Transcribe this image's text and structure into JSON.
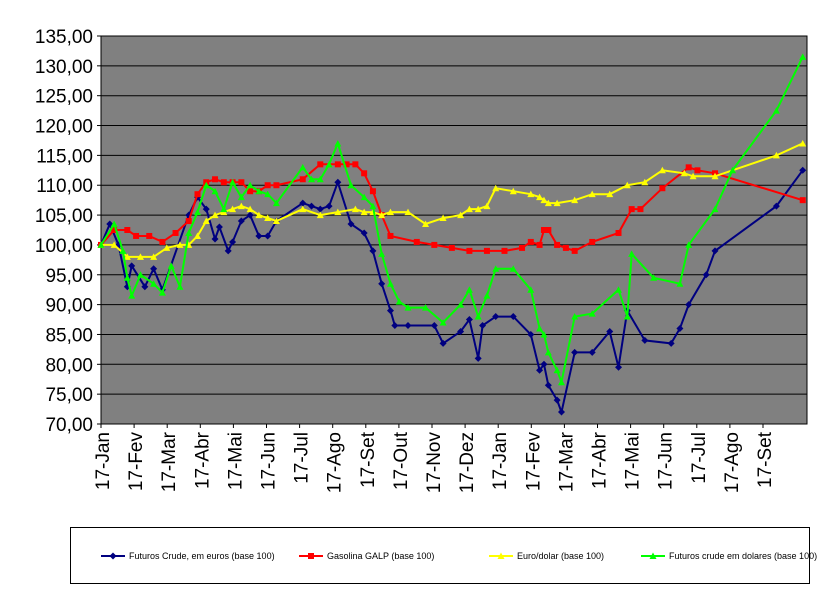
{
  "chart_data": {
    "type": "line",
    "title": "",
    "xlabel": "",
    "ylabel": "",
    "ylim": [
      70,
      135
    ],
    "y_ticks": [
      "70,00",
      "75,00",
      "80,00",
      "85,00",
      "90,00",
      "95,00",
      "100,00",
      "105,00",
      "110,00",
      "115,00",
      "120,00",
      "125,00",
      "130,00",
      "135,00"
    ],
    "x_ticks": [
      "17-Jan",
      "17-Fev",
      "17-Mar",
      "17-Abr",
      "17-Mai",
      "17-Jun",
      "17-Jul",
      "17-Ago",
      "17-Set",
      "17-Out",
      "17-Nov",
      "17-Dez",
      "17-Jan",
      "17-Fev",
      "17-Mar",
      "17-Abr",
      "17-Mai",
      "17-Jun",
      "17-Jul",
      "17-Ago",
      "17-Set"
    ],
    "grid": true,
    "background": "#808080",
    "legend_position": "bottom",
    "series": [
      {
        "name": "Futuros Crude, em euros (base 100)",
        "color": "#000080",
        "marker": "diamond",
        "points": [
          [
            0,
            100
          ],
          [
            0.1,
            103.5
          ],
          [
            0.2,
            100
          ],
          [
            0.3,
            93
          ],
          [
            0.35,
            96.5
          ],
          [
            0.5,
            93
          ],
          [
            0.6,
            96
          ],
          [
            0.7,
            92.5
          ],
          [
            1.0,
            105
          ],
          [
            1.1,
            108
          ],
          [
            1.2,
            106
          ],
          [
            1.3,
            101
          ],
          [
            1.35,
            103
          ],
          [
            1.45,
            99
          ],
          [
            1.5,
            100.5
          ],
          [
            1.6,
            104
          ],
          [
            1.7,
            105
          ],
          [
            1.8,
            101.5
          ],
          [
            1.9,
            101.5
          ],
          [
            2.0,
            104
          ],
          [
            2.3,
            107
          ],
          [
            2.4,
            106.5
          ],
          [
            2.5,
            106
          ],
          [
            2.6,
            106.5
          ],
          [
            2.7,
            110.5
          ],
          [
            2.85,
            103.5
          ],
          [
            3.0,
            102
          ],
          [
            3.1,
            99
          ],
          [
            3.2,
            93.5
          ],
          [
            3.3,
            89
          ],
          [
            3.35,
            86.5
          ],
          [
            3.5,
            86.5
          ],
          [
            3.8,
            86.5
          ],
          [
            3.9,
            83.5
          ],
          [
            4.1,
            85.5
          ],
          [
            4.2,
            87.5
          ],
          [
            4.3,
            81
          ],
          [
            4.35,
            86.5
          ],
          [
            4.5,
            88
          ],
          [
            4.7,
            88
          ],
          [
            4.9,
            85
          ],
          [
            5.0,
            79
          ],
          [
            5.05,
            80
          ],
          [
            5.1,
            76.5
          ],
          [
            5.2,
            74
          ],
          [
            5.25,
            72
          ],
          [
            5.4,
            82
          ],
          [
            5.6,
            82
          ],
          [
            5.8,
            85.5
          ],
          [
            5.9,
            79.5
          ],
          [
            6.0,
            89
          ],
          [
            6.2,
            84
          ],
          [
            6.5,
            83.5
          ],
          [
            6.6,
            86
          ],
          [
            6.7,
            90
          ],
          [
            6.9,
            95
          ],
          [
            7.0,
            99
          ],
          [
            7.7,
            106.5
          ],
          [
            8.0,
            112.5
          ]
        ]
      },
      {
        "name": "Gasolina GALP (base 100)",
        "color": "#ff0000",
        "marker": "square",
        "points": [
          [
            0,
            100
          ],
          [
            0.15,
            102.5
          ],
          [
            0.3,
            102.5
          ],
          [
            0.4,
            101.5
          ],
          [
            0.55,
            101.5
          ],
          [
            0.7,
            100.5
          ],
          [
            0.85,
            102
          ],
          [
            1.0,
            104
          ],
          [
            1.1,
            108.5
          ],
          [
            1.2,
            110.5
          ],
          [
            1.3,
            111
          ],
          [
            1.4,
            110.5
          ],
          [
            1.5,
            110.5
          ],
          [
            1.6,
            110.5
          ],
          [
            1.7,
            109
          ],
          [
            1.8,
            109
          ],
          [
            1.9,
            110
          ],
          [
            2.0,
            110
          ],
          [
            2.3,
            111
          ],
          [
            2.5,
            113.5
          ],
          [
            2.7,
            113.5
          ],
          [
            2.8,
            113.5
          ],
          [
            2.9,
            113.5
          ],
          [
            3.0,
            112
          ],
          [
            3.1,
            109
          ],
          [
            3.2,
            105
          ],
          [
            3.3,
            101.5
          ],
          [
            3.6,
            100.5
          ],
          [
            3.8,
            100
          ],
          [
            4.0,
            99.5
          ],
          [
            4.2,
            99
          ],
          [
            4.4,
            99
          ],
          [
            4.6,
            99
          ],
          [
            4.8,
            99.5
          ],
          [
            4.9,
            100.5
          ],
          [
            5.0,
            100
          ],
          [
            5.05,
            102.5
          ],
          [
            5.1,
            102.5
          ],
          [
            5.2,
            100
          ],
          [
            5.3,
            99.5
          ],
          [
            5.4,
            99
          ],
          [
            5.6,
            100.5
          ],
          [
            5.9,
            102
          ],
          [
            6.05,
            106
          ],
          [
            6.15,
            106
          ],
          [
            6.4,
            109.5
          ],
          [
            6.7,
            113
          ],
          [
            6.8,
            112.5
          ],
          [
            7.0,
            112
          ],
          [
            8.0,
            107.5
          ]
        ]
      },
      {
        "name": "Euro/dolar (base 100)",
        "color": "#ffff00",
        "marker": "triangle",
        "points": [
          [
            0,
            100
          ],
          [
            0.15,
            100
          ],
          [
            0.3,
            98
          ],
          [
            0.45,
            98
          ],
          [
            0.6,
            98
          ],
          [
            0.75,
            99.5
          ],
          [
            0.9,
            100
          ],
          [
            1.0,
            100
          ],
          [
            1.1,
            101.5
          ],
          [
            1.2,
            104
          ],
          [
            1.3,
            105
          ],
          [
            1.4,
            105.5
          ],
          [
            1.5,
            106
          ],
          [
            1.6,
            106.5
          ],
          [
            1.7,
            106
          ],
          [
            1.8,
            105
          ],
          [
            1.9,
            104.5
          ],
          [
            2.0,
            104
          ],
          [
            2.3,
            106
          ],
          [
            2.5,
            105
          ],
          [
            2.7,
            105.5
          ],
          [
            2.9,
            106
          ],
          [
            3.0,
            105.5
          ],
          [
            3.1,
            105.5
          ],
          [
            3.2,
            105
          ],
          [
            3.3,
            105.5
          ],
          [
            3.5,
            105.5
          ],
          [
            3.7,
            103.5
          ],
          [
            3.9,
            104.5
          ],
          [
            4.1,
            105
          ],
          [
            4.2,
            106
          ],
          [
            4.3,
            106
          ],
          [
            4.4,
            106.5
          ],
          [
            4.5,
            109.5
          ],
          [
            4.7,
            109
          ],
          [
            4.9,
            108.5
          ],
          [
            5.0,
            108
          ],
          [
            5.05,
            107.5
          ],
          [
            5.1,
            107
          ],
          [
            5.2,
            107
          ],
          [
            5.4,
            107.5
          ],
          [
            5.6,
            108.5
          ],
          [
            5.8,
            108.5
          ],
          [
            6.0,
            110
          ],
          [
            6.2,
            110.5
          ],
          [
            6.4,
            112.5
          ],
          [
            6.65,
            112
          ],
          [
            6.75,
            111.5
          ],
          [
            7.0,
            111.5
          ],
          [
            7.7,
            115
          ],
          [
            8.0,
            117
          ]
        ]
      },
      {
        "name": "Futuros crude em dolares (base 100)",
        "color": "#00ff00",
        "marker": "triangle",
        "points": [
          [
            0,
            100
          ],
          [
            0.15,
            103.5
          ],
          [
            0.25,
            99
          ],
          [
            0.3,
            94.5
          ],
          [
            0.35,
            91.5
          ],
          [
            0.45,
            95
          ],
          [
            0.6,
            93.5
          ],
          [
            0.7,
            92
          ],
          [
            0.8,
            96.5
          ],
          [
            0.9,
            93
          ],
          [
            1.0,
            102
          ],
          [
            1.1,
            105.5
          ],
          [
            1.2,
            110
          ],
          [
            1.3,
            109
          ],
          [
            1.4,
            106
          ],
          [
            1.5,
            110.5
          ],
          [
            1.6,
            108
          ],
          [
            1.7,
            110
          ],
          [
            1.8,
            109
          ],
          [
            1.9,
            108.5
          ],
          [
            2.0,
            107
          ],
          [
            2.3,
            113
          ],
          [
            2.4,
            111
          ],
          [
            2.5,
            111
          ],
          [
            2.6,
            113.5
          ],
          [
            2.7,
            117
          ],
          [
            2.85,
            110
          ],
          [
            3.0,
            108
          ],
          [
            3.1,
            106.5
          ],
          [
            3.2,
            98.5
          ],
          [
            3.3,
            93.5
          ],
          [
            3.4,
            90.5
          ],
          [
            3.5,
            89.5
          ],
          [
            3.7,
            89.5
          ],
          [
            3.9,
            87
          ],
          [
            4.1,
            90
          ],
          [
            4.2,
            92.5
          ],
          [
            4.3,
            88
          ],
          [
            4.4,
            91.5
          ],
          [
            4.5,
            96
          ],
          [
            4.7,
            96
          ],
          [
            4.9,
            92.5
          ],
          [
            5.0,
            86
          ],
          [
            5.05,
            85
          ],
          [
            5.1,
            82
          ],
          [
            5.2,
            79
          ],
          [
            5.25,
            77
          ],
          [
            5.4,
            88
          ],
          [
            5.6,
            88.5
          ],
          [
            5.9,
            92.5
          ],
          [
            6.0,
            88
          ],
          [
            6.05,
            98.5
          ],
          [
            6.3,
            94.5
          ],
          [
            6.6,
            93.5
          ],
          [
            6.7,
            100
          ],
          [
            7.0,
            106
          ],
          [
            7.2,
            112.5
          ],
          [
            7.7,
            122.5
          ],
          [
            8.0,
            131.5
          ]
        ]
      }
    ]
  }
}
